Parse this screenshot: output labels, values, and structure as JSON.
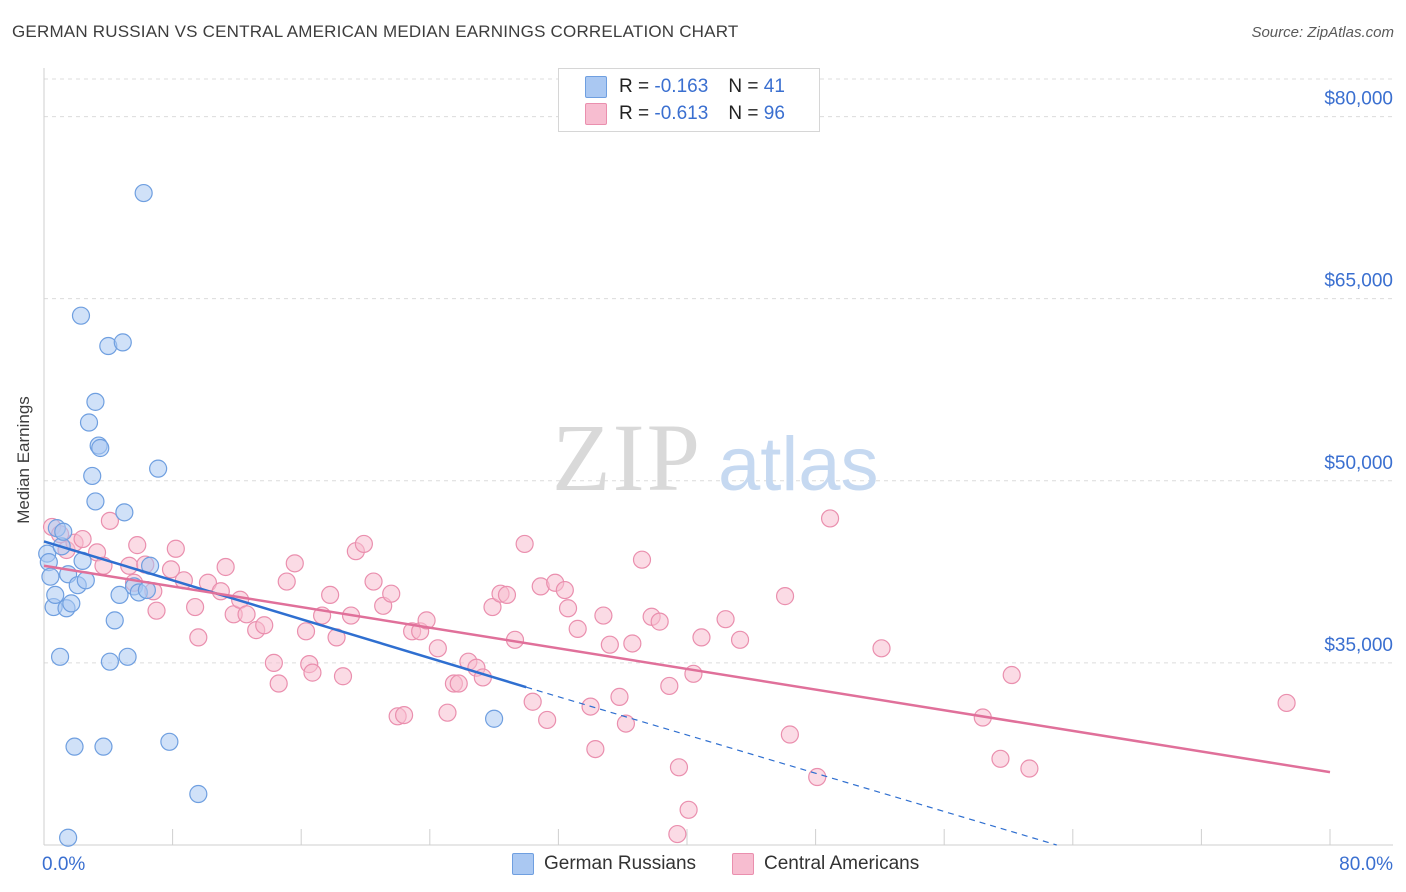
{
  "title": "GERMAN RUSSIAN VS CENTRAL AMERICAN MEDIAN EARNINGS CORRELATION CHART",
  "source": "Source: ZipAtlas.com",
  "watermark": {
    "zip": "ZIP",
    "atlas": "atlas"
  },
  "legend": {
    "r_label": "R =",
    "n_label": "N =",
    "rows": [
      {
        "r": "-0.163",
        "n": "41"
      },
      {
        "r": "-0.613",
        "n": "96"
      }
    ]
  },
  "colors": {
    "blue_fill": "#aac8f2",
    "blue_stroke": "#6f9fe0",
    "blue_line": "#2f6fd0",
    "pink_fill": "#f7bdd0",
    "pink_stroke": "#ea8fae",
    "pink_line": "#e0709a",
    "axis_text": "#3a6fd0",
    "grid": "#dcdcdc"
  },
  "chart_data": {
    "type": "scatter",
    "title": "GERMAN RUSSIAN VS CENTRAL AMERICAN MEDIAN EARNINGS CORRELATION CHART",
    "ylabel": "Median Earnings",
    "xlabel": "",
    "xlim": [
      0,
      80
    ],
    "ylim": [
      20000,
      84000
    ],
    "x_tick_labels": [
      "0.0%",
      "80.0%"
    ],
    "y_ticks": [
      35000,
      50000,
      65000,
      80000
    ],
    "y_tick_labels": [
      "$35,000",
      "$50,000",
      "$65,000",
      "$80,000"
    ],
    "grid": true,
    "legend_position": "top-center",
    "series": [
      {
        "name": "German Russians",
        "color": "#aac8f2",
        "r": -0.163,
        "n": 41,
        "trend": {
          "x": [
            0,
            30
          ],
          "y": [
            45000,
            33000
          ],
          "dashed_to": [
            63,
            20000
          ]
        },
        "points": [
          [
            0.2,
            44000
          ],
          [
            0.3,
            43300
          ],
          [
            0.4,
            42100
          ],
          [
            0.6,
            39600
          ],
          [
            0.7,
            40600
          ],
          [
            0.8,
            46100
          ],
          [
            1.0,
            35500
          ],
          [
            1.1,
            44600
          ],
          [
            1.4,
            39500
          ],
          [
            1.5,
            42300
          ],
          [
            1.5,
            20600
          ],
          [
            1.7,
            39900
          ],
          [
            1.9,
            28100
          ],
          [
            2.1,
            41400
          ],
          [
            2.3,
            63600
          ],
          [
            2.4,
            43400
          ],
          [
            2.6,
            41800
          ],
          [
            2.8,
            54800
          ],
          [
            3.0,
            50400
          ],
          [
            3.2,
            56500
          ],
          [
            3.2,
            48300
          ],
          [
            3.4,
            52900
          ],
          [
            3.5,
            52700
          ],
          [
            3.7,
            28100
          ],
          [
            4.0,
            61100
          ],
          [
            4.1,
            35100
          ],
          [
            4.4,
            38500
          ],
          [
            4.7,
            40600
          ],
          [
            4.9,
            61400
          ],
          [
            5.0,
            47400
          ],
          [
            5.2,
            35500
          ],
          [
            5.6,
            41300
          ],
          [
            5.9,
            40800
          ],
          [
            6.2,
            73700
          ],
          [
            6.4,
            41000
          ],
          [
            6.6,
            43000
          ],
          [
            7.1,
            51000
          ],
          [
            7.8,
            28500
          ],
          [
            9.6,
            24200
          ],
          [
            28.0,
            30400
          ],
          [
            1.2,
            45800
          ]
        ]
      },
      {
        "name": "Central Americans",
        "color": "#f7bdd0",
        "r": -0.613,
        "n": 96,
        "trend": {
          "x": [
            0,
            80
          ],
          "y": [
            43000,
            26000
          ]
        },
        "points": [
          [
            0.5,
            46200
          ],
          [
            1.0,
            45600
          ],
          [
            1.4,
            44300
          ],
          [
            1.9,
            44900
          ],
          [
            2.4,
            45200
          ],
          [
            3.3,
            44100
          ],
          [
            3.7,
            43000
          ],
          [
            4.1,
            46700
          ],
          [
            5.3,
            43000
          ],
          [
            5.6,
            41600
          ],
          [
            5.8,
            44700
          ],
          [
            6.3,
            43100
          ],
          [
            6.8,
            40900
          ],
          [
            7.0,
            39300
          ],
          [
            7.9,
            42700
          ],
          [
            8.2,
            44400
          ],
          [
            8.7,
            41800
          ],
          [
            9.4,
            39600
          ],
          [
            9.6,
            37100
          ],
          [
            10.2,
            41600
          ],
          [
            11.0,
            40900
          ],
          [
            11.3,
            42900
          ],
          [
            11.8,
            39000
          ],
          [
            12.2,
            40200
          ],
          [
            12.6,
            39000
          ],
          [
            13.2,
            37700
          ],
          [
            13.7,
            38100
          ],
          [
            14.3,
            35000
          ],
          [
            14.6,
            33300
          ],
          [
            15.1,
            41700
          ],
          [
            15.6,
            43200
          ],
          [
            16.3,
            37600
          ],
          [
            16.5,
            34900
          ],
          [
            16.7,
            34200
          ],
          [
            17.3,
            38900
          ],
          [
            17.8,
            40600
          ],
          [
            18.2,
            37100
          ],
          [
            18.6,
            33900
          ],
          [
            19.1,
            38900
          ],
          [
            19.4,
            44200
          ],
          [
            19.9,
            44800
          ],
          [
            20.5,
            41700
          ],
          [
            21.1,
            39700
          ],
          [
            21.6,
            40700
          ],
          [
            22.0,
            30600
          ],
          [
            22.4,
            30700
          ],
          [
            22.9,
            37600
          ],
          [
            23.4,
            37600
          ],
          [
            23.8,
            38500
          ],
          [
            24.5,
            36200
          ],
          [
            25.1,
            30900
          ],
          [
            25.5,
            33300
          ],
          [
            25.8,
            33300
          ],
          [
            26.4,
            35100
          ],
          [
            26.9,
            34600
          ],
          [
            27.3,
            33800
          ],
          [
            27.9,
            39600
          ],
          [
            28.4,
            40700
          ],
          [
            28.8,
            40600
          ],
          [
            29.3,
            36900
          ],
          [
            29.9,
            44800
          ],
          [
            30.4,
            31800
          ],
          [
            30.9,
            41300
          ],
          [
            31.3,
            30300
          ],
          [
            31.8,
            41600
          ],
          [
            32.4,
            41000
          ],
          [
            32.6,
            39500
          ],
          [
            33.2,
            37800
          ],
          [
            34.0,
            31400
          ],
          [
            34.3,
            27900
          ],
          [
            34.8,
            38900
          ],
          [
            35.2,
            36500
          ],
          [
            35.8,
            32200
          ],
          [
            36.2,
            30000
          ],
          [
            36.6,
            36600
          ],
          [
            37.2,
            43500
          ],
          [
            37.8,
            38800
          ],
          [
            38.3,
            38400
          ],
          [
            38.9,
            33100
          ],
          [
            39.5,
            26400
          ],
          [
            40.1,
            22900
          ],
          [
            40.4,
            34100
          ],
          [
            40.9,
            37100
          ],
          [
            42.4,
            38600
          ],
          [
            43.3,
            36900
          ],
          [
            46.1,
            40500
          ],
          [
            46.4,
            29100
          ],
          [
            48.1,
            25600
          ],
          [
            48.9,
            46900
          ],
          [
            52.1,
            36200
          ],
          [
            58.4,
            30500
          ],
          [
            59.5,
            27100
          ],
          [
            60.2,
            34000
          ],
          [
            61.3,
            26300
          ],
          [
            77.3,
            31700
          ],
          [
            39.4,
            20900
          ]
        ]
      }
    ]
  }
}
